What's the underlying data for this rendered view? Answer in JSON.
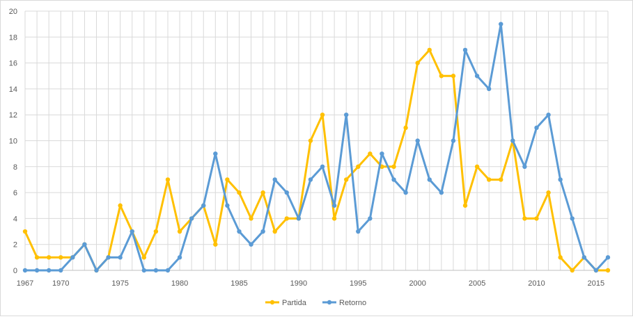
{
  "chart_data": {
    "type": "line",
    "x": [
      1967,
      1968,
      1969,
      1970,
      1971,
      1972,
      1973,
      1974,
      1975,
      1976,
      1977,
      1978,
      1979,
      1980,
      1981,
      1982,
      1983,
      1984,
      1985,
      1986,
      1987,
      1988,
      1989,
      1990,
      1991,
      1992,
      1993,
      1994,
      1995,
      1996,
      1997,
      1998,
      1999,
      2000,
      2001,
      2002,
      2003,
      2004,
      2005,
      2006,
      2007,
      2008,
      2009,
      2010,
      2011,
      2012,
      2013,
      2014,
      2015,
      2016
    ],
    "x_tick_labels": [
      "1967",
      "1970",
      "1975",
      "1980",
      "1985",
      "1990",
      "1995",
      "2000",
      "2005",
      "2010",
      "2015"
    ],
    "y_tick_labels": [
      "0",
      "2",
      "4",
      "6",
      "8",
      "10",
      "12",
      "14",
      "16",
      "18",
      "20"
    ],
    "ylim": [
      0,
      20
    ],
    "grid": true,
    "legend_position": "bottom",
    "series": [
      {
        "name": "Partida",
        "color": "#ffc000",
        "values": [
          3,
          1,
          1,
          1,
          1,
          2,
          0,
          1,
          5,
          3,
          1,
          3,
          7,
          3,
          4,
          5,
          2,
          7,
          6,
          4,
          6,
          3,
          4,
          4,
          10,
          12,
          4,
          7,
          8,
          9,
          8,
          8,
          11,
          16,
          17,
          15,
          15,
          5,
          8,
          7,
          7,
          10,
          4,
          4,
          6,
          1,
          0,
          1,
          0,
          0
        ]
      },
      {
        "name": "Retorno",
        "color": "#5b9bd5",
        "values": [
          0,
          0,
          0,
          0,
          1,
          2,
          0,
          1,
          1,
          3,
          0,
          0,
          0,
          1,
          4,
          5,
          9,
          5,
          3,
          2,
          3,
          7,
          6,
          4,
          7,
          8,
          5,
          12,
          3,
          4,
          9,
          7,
          6,
          10,
          7,
          6,
          10,
          17,
          15,
          14,
          19,
          10,
          8,
          11,
          12,
          7,
          4,
          1,
          0,
          1
        ]
      }
    ]
  }
}
